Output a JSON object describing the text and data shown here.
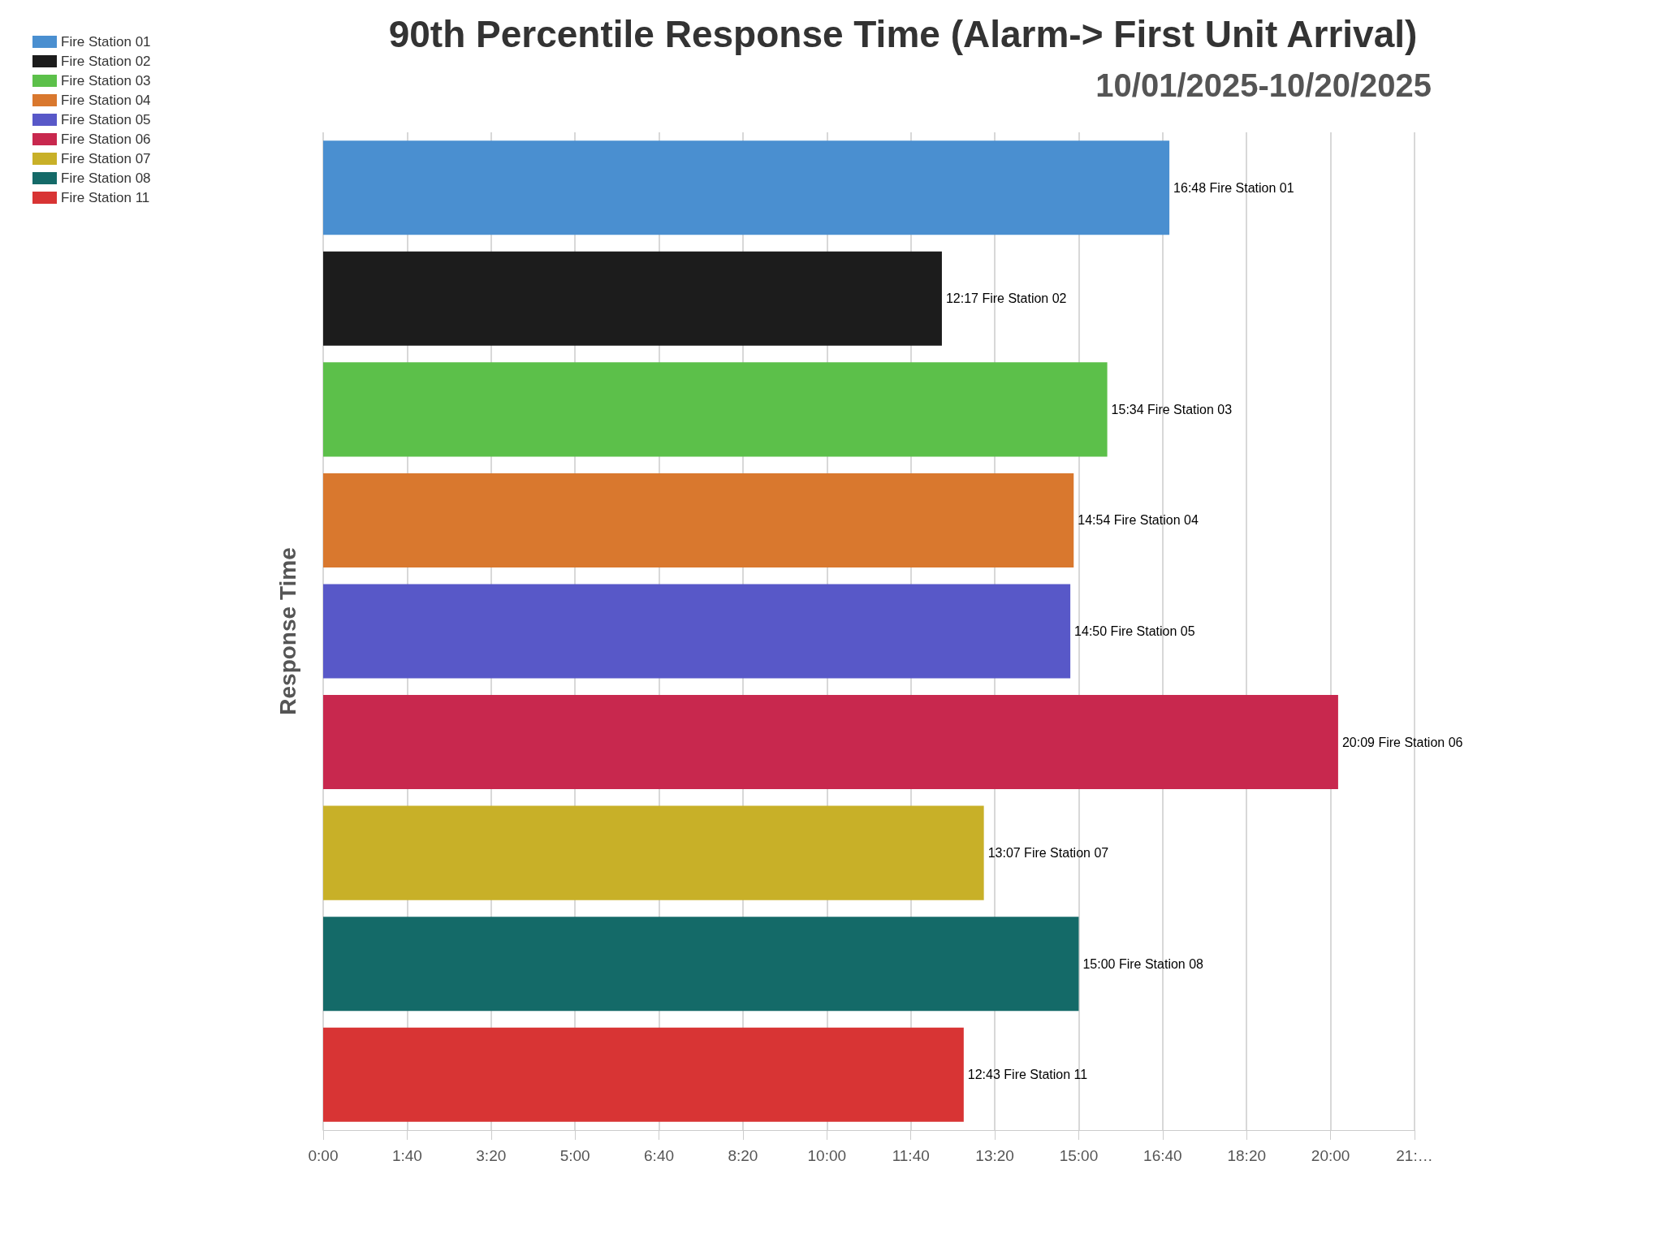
{
  "chart_data": {
    "type": "bar",
    "orientation": "horizontal",
    "title": "90th Percentile Response Time (Alarm-> First Unit Arrival)",
    "subtitle": "10/01/2025-10/20/2025",
    "ylabel": "Response Time",
    "categories": [
      null,
      null,
      null,
      null,
      null,
      null,
      null,
      null,
      null
    ],
    "series": [
      {
        "name": "Fire Station 01",
        "color": "#4a8fd0",
        "values": [
          1008,
          null,
          null,
          null,
          null,
          null,
          null,
          null,
          null
        ],
        "value_labels": [
          "16:48 Fire Station 01",
          null,
          null,
          null,
          null,
          null,
          null,
          null,
          null
        ]
      },
      {
        "name": "Fire Station 02",
        "color": "#1c1c1c",
        "values": [
          null,
          737,
          null,
          null,
          null,
          null,
          null,
          null,
          null
        ],
        "value_labels": [
          null,
          "12:17 Fire Station 02",
          null,
          null,
          null,
          null,
          null,
          null,
          null
        ]
      },
      {
        "name": "Fire Station 03",
        "color": "#5cc04a",
        "values": [
          null,
          null,
          934,
          null,
          null,
          null,
          null,
          null,
          null
        ],
        "value_labels": [
          null,
          null,
          "15:34 Fire Station 03",
          null,
          null,
          null,
          null,
          null,
          null
        ]
      },
      {
        "name": "Fire Station 04",
        "color": "#d9782e",
        "values": [
          null,
          null,
          null,
          894,
          null,
          null,
          null,
          null,
          null
        ],
        "value_labels": [
          null,
          null,
          null,
          "14:54 Fire Station 04",
          null,
          null,
          null,
          null,
          null
        ]
      },
      {
        "name": "Fire Station 05",
        "color": "#5858c8",
        "values": [
          null,
          null,
          null,
          null,
          890,
          null,
          null,
          null,
          null
        ],
        "value_labels": [
          null,
          null,
          null,
          null,
          "14:50 Fire Station 05",
          null,
          null,
          null,
          null
        ]
      },
      {
        "name": "Fire Station 06",
        "color": "#c8284e",
        "values": [
          null,
          null,
          null,
          null,
          null,
          1209,
          null,
          null,
          null
        ],
        "value_labels": [
          null,
          null,
          null,
          null,
          null,
          "20:09 Fire Station 06",
          null,
          null,
          null
        ]
      },
      {
        "name": "Fire Station 07",
        "color": "#c8b028",
        "values": [
          null,
          null,
          null,
          null,
          null,
          null,
          787,
          null,
          null
        ],
        "value_labels": [
          null,
          null,
          null,
          null,
          null,
          null,
          "13:07 Fire Station 07",
          null,
          null
        ]
      },
      {
        "name": "Fire Station 08",
        "color": "#146a68",
        "values": [
          null,
          null,
          null,
          null,
          null,
          null,
          null,
          900,
          null
        ],
        "value_labels": [
          null,
          null,
          null,
          null,
          null,
          null,
          null,
          "15:00 Fire Station 08",
          null
        ]
      },
      {
        "name": "Fire Station 11",
        "color": "#d83434",
        "values": [
          null,
          null,
          null,
          null,
          null,
          null,
          null,
          null,
          763
        ],
        "value_labels": [
          null,
          null,
          null,
          null,
          null,
          null,
          null,
          null,
          "12:43 Fire Station 11"
        ]
      }
    ],
    "xlim": [
      0,
      1300
    ],
    "xticks": [
      {
        "value": 0,
        "label": "0:00"
      },
      {
        "value": 100,
        "label": "1:40"
      },
      {
        "value": 200,
        "label": "3:20"
      },
      {
        "value": 300,
        "label": "5:00"
      },
      {
        "value": 400,
        "label": "6:40"
      },
      {
        "value": 500,
        "label": "8:20"
      },
      {
        "value": 600,
        "label": "10:00"
      },
      {
        "value": 700,
        "label": "11:40"
      },
      {
        "value": 800,
        "label": "13:20"
      },
      {
        "value": 900,
        "label": "15:00"
      },
      {
        "value": 1000,
        "label": "16:40"
      },
      {
        "value": 1100,
        "label": "18:20"
      },
      {
        "value": 1200,
        "label": "20:00"
      },
      {
        "value": 1300,
        "label": "21:…"
      }
    ],
    "grid": "x",
    "legend": "top left"
  }
}
